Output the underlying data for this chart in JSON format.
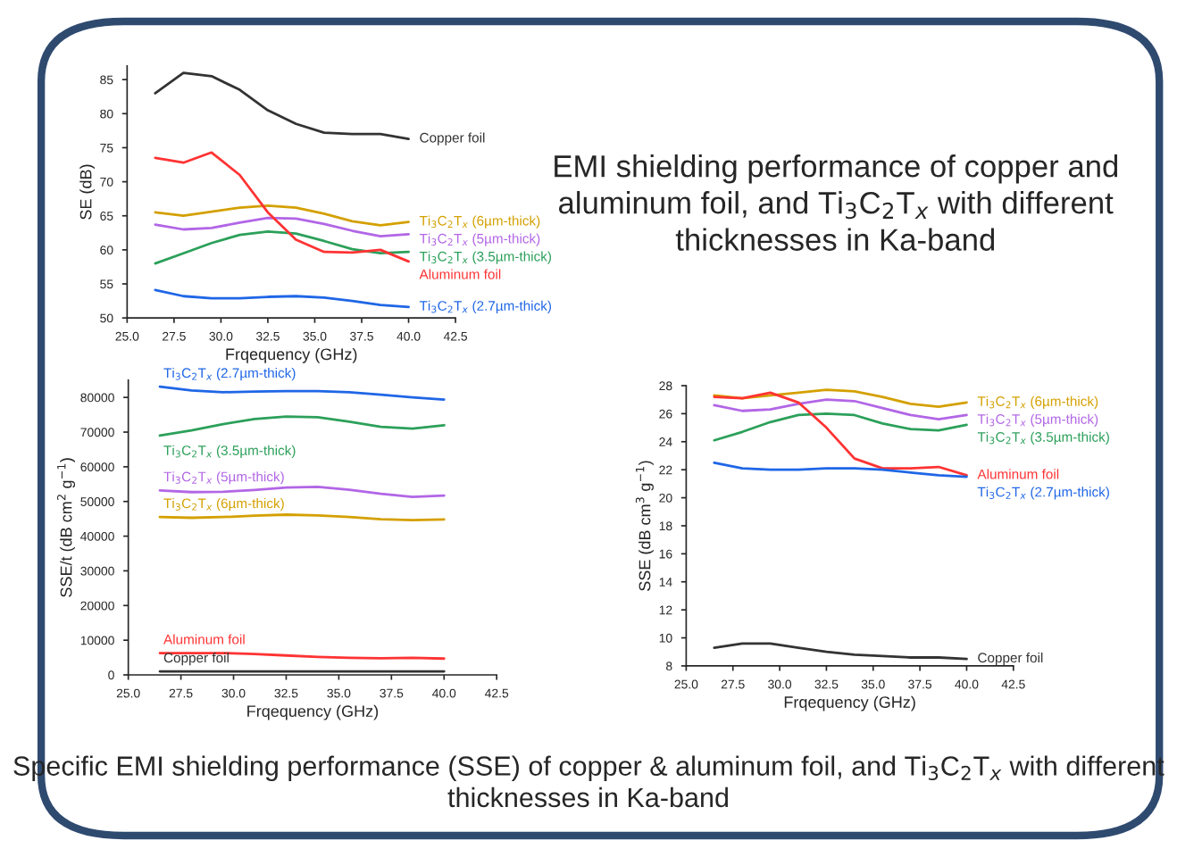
{
  "chart_data": [
    {
      "type": "line",
      "title": "EMI shielding performance of copper and aluminum foil, and Ti$_{3}$C$_{2}$T$_{x}$ with different thicknesses in Ka-band",
      "xlabel": "Frqequency (GHz)",
      "ylabel": "SE (dB)",
      "x": [
        26.5,
        28,
        29.5,
        31,
        32.5,
        34,
        35.5,
        37,
        38.5,
        40
      ],
      "xlim": [
        25,
        42.5
      ],
      "xticks": [
        {
          "value": 25,
          "label": "25.0"
        },
        {
          "value": 27.5,
          "label": "27.5"
        },
        {
          "value": 30,
          "label": "30.0"
        },
        {
          "value": 32.5,
          "label": "32.5"
        },
        {
          "value": 35,
          "label": "35.0"
        },
        {
          "value": 37.5,
          "label": "37.5"
        },
        {
          "value": 40,
          "label": "40.0"
        },
        {
          "value": 42.5,
          "label": "42.5"
        }
      ],
      "ylim": [
        50,
        87
      ],
      "yticks": [
        50,
        55,
        60,
        65,
        70,
        75,
        80,
        85
      ],
      "grid": false,
      "legend": false,
      "marker": "none",
      "line_style": "solid",
      "series": [
        {
          "name": "Copper foil",
          "color": "#333333",
          "values": [
            83,
            86,
            85.5,
            83.5,
            80.5,
            78.5,
            77.2,
            77,
            77,
            76.3
          ]
        },
        {
          "name": "Ti$_{3}$C$_{2}$T$_{x}$ (6µm-thick)",
          "color": "#d4a000",
          "values": [
            65.5,
            65,
            65.6,
            66.2,
            66.5,
            66.2,
            65.3,
            64.2,
            63.6,
            64.1
          ]
        },
        {
          "name": "Ti$_{3}$C$_{2}$T$_{x}$ (5µm-thick)",
          "color": "#b266e6",
          "values": [
            63.7,
            63,
            63.2,
            64,
            64.7,
            64.6,
            63.8,
            62.8,
            62,
            62.3
          ]
        },
        {
          "name": "Ti$_{3}$C$_{2}$T$_{x}$ (3.5µm-thick)",
          "color": "#2ca05a",
          "values": [
            58,
            59.5,
            61,
            62.2,
            62.7,
            62.4,
            61.3,
            60.1,
            59.5,
            59.7
          ]
        },
        {
          "name": "Aluminum foil",
          "color": "#ff3333",
          "values": [
            73.5,
            72.8,
            74.3,
            71,
            65.5,
            61.5,
            59.7,
            59.6,
            60,
            58.3
          ]
        },
        {
          "name": "Ti$_{3}$C$_{2}$T$_{x}$ (2.7µm-thick)",
          "color": "#1f66e6",
          "values": [
            54.1,
            53.2,
            52.9,
            52.9,
            53.1,
            53.2,
            53,
            52.5,
            51.9,
            51.6
          ]
        }
      ]
    },
    {
      "type": "line",
      "xlabel": "Frqequency (GHz)",
      "ylabel": "SSE/t (dB cm$^{2}$ g$^{−1}$)",
      "annotations": [
        "Specific EMI shielding performance (SSE) of copper & aluminum foil, and Ti$_{3}$C$_{2}$T$_{x}$ with different thicknesses in Ka-band"
      ],
      "x": [
        26.5,
        28,
        29.5,
        31,
        32.5,
        34,
        35.5,
        37,
        38.5,
        40
      ],
      "xlim": [
        25,
        42.5
      ],
      "xticks": [
        {
          "value": 25,
          "label": "25.0"
        },
        {
          "value": 27.5,
          "label": "27.5"
        },
        {
          "value": 30,
          "label": "30.0"
        },
        {
          "value": 32.5,
          "label": "32.5"
        },
        {
          "value": 35,
          "label": "35.0"
        },
        {
          "value": 37.5,
          "label": "37.5"
        },
        {
          "value": 40,
          "label": "40.0"
        },
        {
          "value": 42.5,
          "label": "42.5"
        }
      ],
      "ylim": [
        0,
        85000
      ],
      "yticks": [
        0,
        10000,
        20000,
        30000,
        40000,
        50000,
        60000,
        70000,
        80000
      ],
      "grid": false,
      "legend": false,
      "marker": "none",
      "line_style": "solid",
      "series": [
        {
          "name": "Ti$_{3}$C$_{2}$T$_{x}$ (2.7µm-thick)",
          "color": "#1f66e6",
          "values": [
            83100,
            82000,
            81500,
            81700,
            81800,
            81800,
            81500,
            80800,
            80000,
            79400
          ]
        },
        {
          "name": "Ti$_{3}$C$_{2}$T$_{x}$ (3.5µm-thick)",
          "color": "#2ca05a",
          "values": [
            69000,
            70500,
            72300,
            73800,
            74500,
            74300,
            73000,
            71500,
            71000,
            72000
          ]
        },
        {
          "name": "Ti$_{3}$C$_{2}$T$_{x}$ (5µm-thick)",
          "color": "#b266e6",
          "values": [
            53200,
            52700,
            52800,
            53300,
            54000,
            54200,
            53400,
            52200,
            51300,
            51700
          ]
        },
        {
          "name": "Ti$_{3}$C$_{2}$T$_{x}$ (6µm-thick)",
          "color": "#d4a000",
          "values": [
            45500,
            45300,
            45500,
            45900,
            46200,
            46000,
            45500,
            44900,
            44600,
            44800
          ]
        },
        {
          "name": "Aluminum foil",
          "color": "#ff3333",
          "values": [
            6300,
            6300,
            6300,
            6000,
            5600,
            5200,
            4900,
            4800,
            4900,
            4700
          ]
        },
        {
          "name": "Copper foil",
          "color": "#333333",
          "values": [
            1000,
            1000,
            1000,
            1000,
            1000,
            1000,
            1000,
            1000,
            1000,
            1000
          ]
        }
      ]
    },
    {
      "type": "line",
      "xlabel": "Frqequency (GHz)",
      "ylabel": "SSE (dB cm$^{3}$ g$^{−1}$)",
      "x": [
        26.5,
        28,
        29.5,
        31,
        32.5,
        34,
        35.5,
        37,
        38.5,
        40
      ],
      "xlim": [
        25,
        42.5
      ],
      "xticks": [
        {
          "value": 25,
          "label": "25.0"
        },
        {
          "value": 27.5,
          "label": "27.5"
        },
        {
          "value": 30,
          "label": "30.0"
        },
        {
          "value": 32.5,
          "label": "32.5"
        },
        {
          "value": 35,
          "label": "35.0"
        },
        {
          "value": 37.5,
          "label": "37.5"
        },
        {
          "value": 40,
          "label": "40.0"
        },
        {
          "value": 42.5,
          "label": "42.5"
        }
      ],
      "ylim": [
        8,
        28
      ],
      "yticks": [
        8,
        10,
        12,
        14,
        16,
        18,
        20,
        22,
        24,
        26,
        28
      ],
      "grid": false,
      "legend": false,
      "marker": "none",
      "line_style": "solid",
      "series": [
        {
          "name": "Ti$_{3}$C$_{2}$T$_{x}$ (6µm-thick)",
          "color": "#d4a000",
          "values": [
            27.3,
            27.1,
            27.3,
            27.5,
            27.7,
            27.6,
            27.2,
            26.7,
            26.5,
            26.8
          ]
        },
        {
          "name": "Ti$_{3}$C$_{2}$T$_{x}$ (5µm-thick)",
          "color": "#b266e6",
          "values": [
            26.6,
            26.2,
            26.3,
            26.7,
            27.0,
            26.9,
            26.4,
            25.9,
            25.6,
            25.9
          ]
        },
        {
          "name": "Ti$_{3}$C$_{2}$T$_{x}$ (3.5µm-thick)",
          "color": "#2ca05a",
          "values": [
            24.1,
            24.7,
            25.4,
            25.9,
            26.0,
            25.9,
            25.3,
            24.9,
            24.8,
            25.2
          ]
        },
        {
          "name": "Aluminum foil",
          "color": "#ff3333",
          "values": [
            27.2,
            27.1,
            27.5,
            26.8,
            25.0,
            22.8,
            22.1,
            22.1,
            22.2,
            21.6
          ]
        },
        {
          "name": "Ti$_{3}$C$_{2}$T$_{x}$ (2.7µm-thick)",
          "color": "#1f66e6",
          "values": [
            22.5,
            22.1,
            22.0,
            22.0,
            22.1,
            22.1,
            22.0,
            21.8,
            21.6,
            21.5
          ]
        },
        {
          "name": "Copper foil",
          "color": "#333333",
          "values": [
            9.3,
            9.6,
            9.6,
            9.3,
            9.0,
            8.8,
            8.7,
            8.6,
            8.6,
            8.5
          ]
        }
      ]
    }
  ]
}
